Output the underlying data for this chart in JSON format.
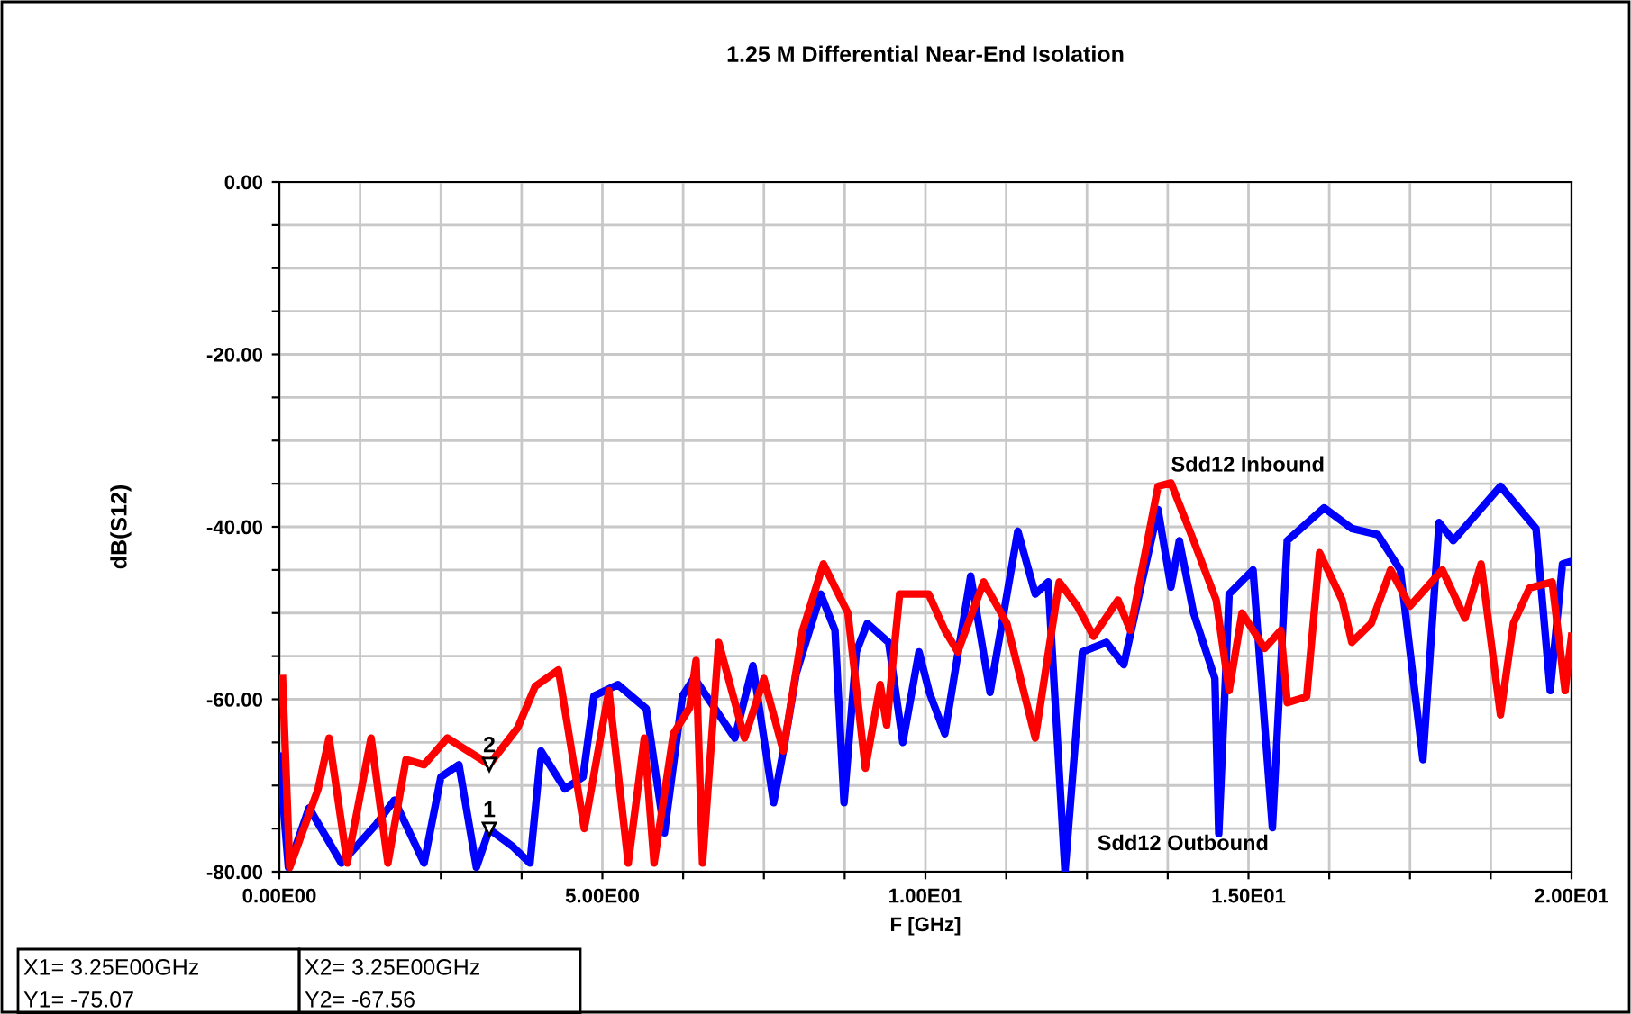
{
  "chart_data": {
    "type": "line",
    "title": "1.25 M Differential Near-End Isolation",
    "xlabel": "F [GHz]",
    "ylabel": "dB(S12)",
    "xlim": [
      0,
      20
    ],
    "ylim": [
      -80,
      0
    ],
    "xticks": [
      {
        "value": 0,
        "label": "0.00E00"
      },
      {
        "value": 1.25,
        "label": null
      },
      {
        "value": 2.5,
        "label": null
      },
      {
        "value": 3.75,
        "label": null
      },
      {
        "value": 5,
        "label": "5.00E00"
      },
      {
        "value": 6.25,
        "label": null
      },
      {
        "value": 7.5,
        "label": null
      },
      {
        "value": 8.75,
        "label": null
      },
      {
        "value": 10,
        "label": "1.00E01"
      },
      {
        "value": 11.25,
        "label": null
      },
      {
        "value": 12.5,
        "label": null
      },
      {
        "value": 13.75,
        "label": null
      },
      {
        "value": 15,
        "label": "1.50E01"
      },
      {
        "value": 16.25,
        "label": null
      },
      {
        "value": 17.5,
        "label": null
      },
      {
        "value": 18.75,
        "label": null
      },
      {
        "value": 20,
        "label": "2.00E01"
      }
    ],
    "yticks": [
      {
        "value": -80,
        "label": "-80.00"
      },
      {
        "value": -75,
        "label": null
      },
      {
        "value": -70,
        "label": null
      },
      {
        "value": -65,
        "label": null
      },
      {
        "value": -60,
        "label": "-60.00"
      },
      {
        "value": -55,
        "label": null
      },
      {
        "value": -50,
        "label": null
      },
      {
        "value": -45,
        "label": null
      },
      {
        "value": -40,
        "label": "-40.00"
      },
      {
        "value": -35,
        "label": null
      },
      {
        "value": -30,
        "label": null
      },
      {
        "value": -25,
        "label": null
      },
      {
        "value": -20,
        "label": "-20.00"
      },
      {
        "value": -15,
        "label": null
      },
      {
        "value": -10,
        "label": null
      },
      {
        "value": -5,
        "label": null
      },
      {
        "value": 0,
        "label": "0.00"
      }
    ],
    "grid": true,
    "legend": false,
    "marker": "none",
    "line_style": "solid",
    "series": [
      {
        "name": "Sdd12 Outbound",
        "color": "#0000ff",
        "x": [
          0,
          0.14,
          0.46,
          0.96,
          1.5,
          1.78,
          2.24,
          2.5,
          2.78,
          3.05,
          3.25,
          3.6,
          3.88,
          4.05,
          4.42,
          4.7,
          4.87,
          5.24,
          5.68,
          5.96,
          6.24,
          6.42,
          7.05,
          7.33,
          7.65,
          7.8,
          8.0,
          8.38,
          8.6,
          8.74,
          8.93,
          9.1,
          9.43,
          9.65,
          9.9,
          10.06,
          10.3,
          10.7,
          11.0,
          11.43,
          11.7,
          11.9,
          12.16,
          12.43,
          12.8,
          13.07,
          13.35,
          13.6,
          13.8,
          13.93,
          14.15,
          14.48,
          14.54,
          14.7,
          15.07,
          15.37,
          15.6,
          16.17,
          16.6,
          17.0,
          17.35,
          17.7,
          17.95,
          18.17,
          18.9,
          19.45,
          19.67,
          19.86,
          20.0
        ],
        "values": [
          -66.6,
          -79.5,
          -72.6,
          -79,
          -74.5,
          -71.7,
          -79,
          -69,
          -67.6,
          -79.5,
          -75.07,
          -77,
          -79,
          -66,
          -70.4,
          -69,
          -59.6,
          -58.3,
          -61.1,
          -75.5,
          -59.6,
          -57.5,
          -64.5,
          -56.1,
          -72,
          -66,
          -57,
          -47.8,
          -52,
          -72,
          -54.5,
          -51.2,
          -53.4,
          -65,
          -54.5,
          -59.2,
          -64,
          -45.7,
          -59.2,
          -40.5,
          -47.8,
          -46.4,
          -80,
          -54.5,
          -53.4,
          -56,
          -46.4,
          -38,
          -47,
          -41.6,
          -50,
          -57.6,
          -75.6,
          -47.8,
          -45,
          -74.9,
          -41.6,
          -37.8,
          -40.2,
          -40.9,
          -45,
          -67,
          -39.5,
          -41.6,
          -35.3,
          -40.2,
          -59,
          -44.3,
          -44
        ]
      },
      {
        "name": "Sdd12 Inbound",
        "color": "#ff0000",
        "x": [
          0.05,
          0.16,
          0.6,
          0.77,
          1.05,
          1.42,
          1.68,
          1.96,
          2.24,
          2.6,
          3.25,
          3.69,
          3.96,
          4.32,
          4.72,
          5.1,
          5.4,
          5.65,
          5.8,
          6.1,
          6.35,
          6.45,
          6.55,
          6.8,
          7.2,
          7.5,
          7.8,
          8.1,
          8.42,
          8.8,
          9.07,
          9.3,
          9.4,
          9.6,
          10.05,
          10.3,
          10.5,
          10.9,
          11.26,
          11.7,
          12.07,
          12.35,
          12.6,
          12.98,
          13.17,
          13.6,
          13.8,
          14.15,
          14.5,
          14.7,
          14.9,
          15.25,
          15.5,
          15.6,
          15.9,
          16.1,
          16.45,
          16.6,
          16.9,
          17.2,
          17.5,
          18.0,
          18.35,
          18.6,
          18.9,
          19.1,
          19.35,
          19.7,
          19.9,
          20.0
        ],
        "values": [
          -57.6,
          -79.5,
          -70.4,
          -64.5,
          -79,
          -64.5,
          -79,
          -67,
          -67.6,
          -64.5,
          -67.56,
          -63.3,
          -58.5,
          -56.6,
          -75,
          -59,
          -79,
          -64.5,
          -79,
          -64,
          -61,
          -55.5,
          -79,
          -53.4,
          -64.5,
          -57.6,
          -66,
          -52,
          -44.3,
          -50,
          -68,
          -58.3,
          -63,
          -47.8,
          -47.8,
          -52,
          -54.5,
          -46.4,
          -51.2,
          -64.5,
          -46.4,
          -49.2,
          -52.7,
          -48.5,
          -52,
          -35.3,
          -34.9,
          -41.6,
          -48.5,
          -59,
          -50,
          -54.1,
          -52,
          -60.4,
          -59.7,
          -43,
          -48.5,
          -53.4,
          -51.2,
          -45,
          -49.2,
          -45,
          -50.6,
          -44.3,
          -61.8,
          -51.2,
          -47.1,
          -46.4,
          -59,
          -52.7
        ]
      }
    ],
    "annotations": [
      {
        "text": "1",
        "x": 3.25,
        "y": -75.07
      },
      {
        "text": "2",
        "x": 3.25,
        "y": -67.56
      },
      "X1= 3.25E00GHz",
      "Y1= -75.07",
      "X2= 3.25E00GHz",
      "Y2= -67.56"
    ]
  }
}
